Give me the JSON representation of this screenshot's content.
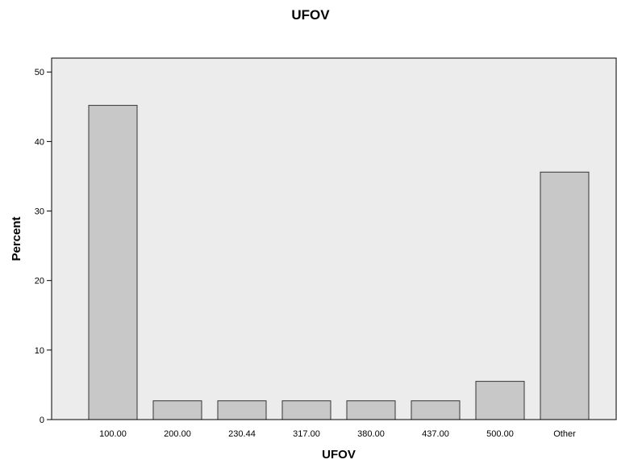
{
  "chart_data": {
    "type": "bar",
    "title": "UFOV",
    "xlabel": "UFOV",
    "ylabel": "Percent",
    "categories": [
      "100.00",
      "200.00",
      "230.44",
      "317.00",
      "380.00",
      "437.00",
      "500.00",
      "Other"
    ],
    "values": [
      45.2,
      2.7,
      2.7,
      2.7,
      2.7,
      2.7,
      5.5,
      35.6
    ],
    "ylim": [
      0,
      52
    ],
    "yticks": [
      0,
      10,
      20,
      30,
      40,
      50
    ],
    "grid": false,
    "legend": "none",
    "colors": {
      "plot_background": "#ececec",
      "bar_fill": "#c8c8c8",
      "bar_stroke": "#333333",
      "axis": "#000000"
    }
  }
}
